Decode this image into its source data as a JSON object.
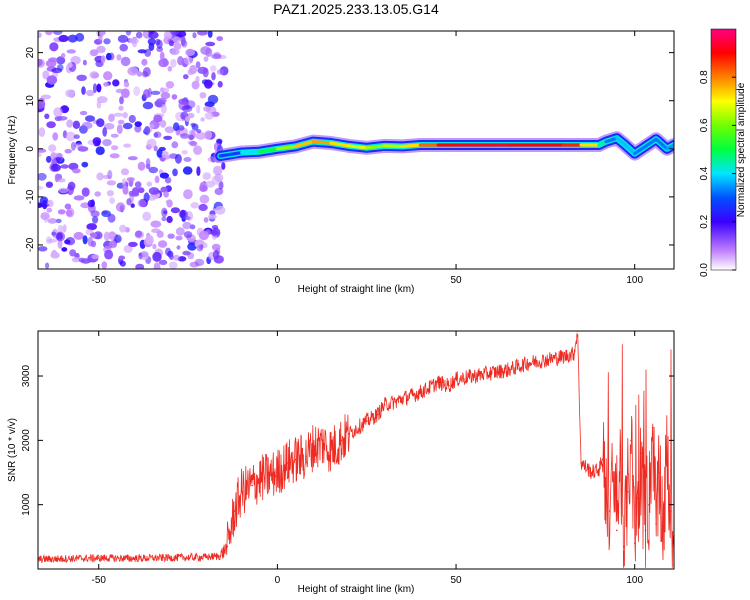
{
  "title": "PAZ1.2025.233.13.05.G14",
  "colors": {
    "snr_line": "#ee2b22",
    "scatter_purple": "#8a2be2",
    "background": "#ffffff",
    "axis": "#000000"
  },
  "chart_data": [
    {
      "type": "heatmap",
      "name": "spectrogram",
      "xlabel": "Height of straight line (km)",
      "ylabel": "Frequency (Hz)",
      "xlim": [
        -67,
        111
      ],
      "ylim": [
        -25,
        24.5
      ],
      "xticks": [
        -50,
        0,
        50,
        100
      ],
      "xtick_labels": [
        "-50",
        "0",
        "50",
        "100"
      ],
      "yticks": [
        -20,
        -10,
        0,
        10,
        20
      ],
      "ytick_labels": [
        "-20",
        "-10",
        "0",
        "10",
        "20"
      ],
      "colorbar": {
        "label": "Normalized spectral amplitude",
        "range": [
          0.0,
          1.0
        ],
        "ticks": [
          0.0,
          0.2,
          0.4,
          0.6,
          0.8
        ],
        "tick_labels": [
          "0.0",
          "0.2",
          "0.4",
          "0.6",
          "0.8"
        ],
        "colormap": "rainbow (white-purple-blue-cyan-green-yellow-orange-red-magenta)"
      },
      "noise_region_x": [
        -67,
        -16
      ],
      "ridge": {
        "x": [
          -16,
          -10,
          -5,
          0,
          5,
          10,
          15,
          20,
          25,
          30,
          35,
          40,
          45,
          50,
          55,
          60,
          65,
          70,
          75,
          80,
          85,
          90,
          92,
          95,
          97,
          100,
          103,
          106,
          109,
          111
        ],
        "freq": [
          -1.5,
          -0.8,
          -0.6,
          0.0,
          0.5,
          1.5,
          1.2,
          0.6,
          0.2,
          0.6,
          0.5,
          0.8,
          0.8,
          0.8,
          0.8,
          0.8,
          0.8,
          0.8,
          0.8,
          0.8,
          0.8,
          0.8,
          1.5,
          2.2,
          1.0,
          -1.0,
          0.5,
          2.0,
          0.0,
          0.8
        ],
        "amplitude": [
          0.2,
          0.35,
          0.45,
          0.55,
          0.7,
          0.8,
          0.75,
          0.7,
          0.65,
          0.6,
          0.7,
          0.75,
          0.9,
          0.92,
          0.92,
          0.93,
          0.93,
          0.9,
          0.92,
          0.9,
          0.85,
          0.6,
          0.3,
          0.35,
          0.4,
          0.35,
          0.3,
          0.35,
          0.3,
          0.4
        ]
      }
    },
    {
      "type": "line",
      "name": "snr",
      "xlabel": "Height of straight line (km)",
      "ylabel": "SNR (10 * v/v)",
      "xlim": [
        -67,
        111
      ],
      "ylim": [
        0,
        3700
      ],
      "xticks": [
        -50,
        0,
        50,
        100
      ],
      "xtick_labels": [
        "-50",
        "0",
        "50",
        "100"
      ],
      "yticks": [
        1000,
        2000,
        3000
      ],
      "ytick_labels": [
        "1000",
        "2000",
        "3000"
      ],
      "series": [
        {
          "name": "SNR",
          "x": [
            -67,
            -60,
            -50,
            -40,
            -30,
            -20,
            -16,
            -14,
            -12,
            -10,
            -7,
            -5,
            -2,
            0,
            3,
            5,
            8,
            10,
            13,
            15,
            18,
            20,
            25,
            28,
            30,
            33,
            35,
            38,
            40,
            42,
            45,
            48,
            50,
            55,
            60,
            65,
            70,
            75,
            80,
            83,
            84,
            85,
            88,
            90,
            91,
            93,
            94,
            95,
            96,
            97,
            98,
            99,
            100,
            101,
            102,
            103,
            104,
            105,
            106,
            107,
            108,
            109,
            110,
            111
          ],
          "y": [
            150,
            160,
            170,
            165,
            175,
            185,
            200,
            350,
            900,
            1200,
            1300,
            1400,
            1450,
            1500,
            1650,
            1700,
            1750,
            1900,
            1950,
            1850,
            2000,
            2100,
            2300,
            2400,
            2550,
            2600,
            2650,
            2700,
            2750,
            2800,
            2900,
            2850,
            2950,
            3000,
            3050,
            3100,
            3200,
            3250,
            3300,
            3350,
            3700,
            1650,
            1500,
            1550,
            1700,
            900,
            1400,
            600,
            1700,
            350,
            1200,
            2000,
            400,
            1100,
            1800,
            600,
            1000,
            2200,
            700,
            1500,
            600,
            1800,
            900,
            350
          ]
        }
      ]
    }
  ]
}
